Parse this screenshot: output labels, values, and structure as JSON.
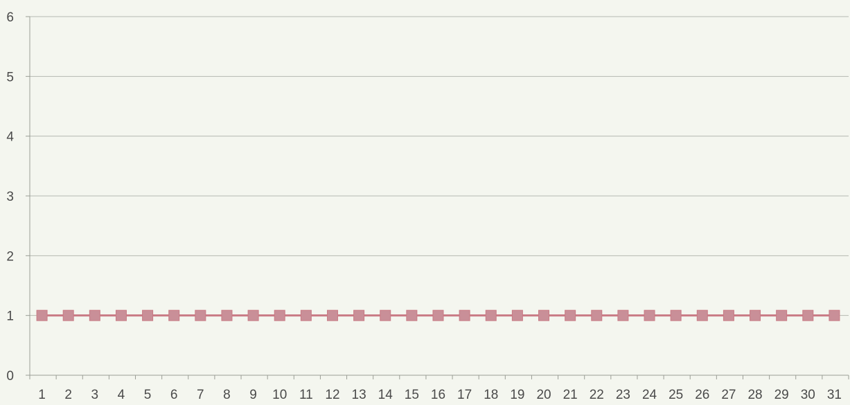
{
  "chart_data": {
    "type": "line",
    "title": "",
    "xlabel": "",
    "ylabel": "",
    "x": [
      1,
      2,
      3,
      4,
      5,
      6,
      7,
      8,
      9,
      10,
      11,
      12,
      13,
      14,
      15,
      16,
      17,
      18,
      19,
      20,
      21,
      22,
      23,
      24,
      25,
      26,
      27,
      28,
      29,
      30,
      31
    ],
    "x_tick_labels": [
      "1",
      "2",
      "3",
      "4",
      "5",
      "6",
      "7",
      "8",
      "9",
      "10",
      "11",
      "12",
      "13",
      "14",
      "15",
      "16",
      "17",
      "18",
      "19",
      "20",
      "21",
      "22",
      "23",
      "24",
      "25",
      "26",
      "27",
      "28",
      "29",
      "30",
      "31"
    ],
    "ylim": [
      0,
      6
    ],
    "y_ticks": [
      0,
      1,
      2,
      3,
      4,
      5,
      6
    ],
    "y_tick_labels": [
      "0",
      "1",
      "2",
      "3",
      "4",
      "5",
      "6"
    ],
    "grid": true,
    "legend": "none",
    "series": [
      {
        "marker": "square",
        "color": "#c97b85",
        "marker_color": "#c98f98",
        "values": [
          1,
          1,
          1,
          1,
          1,
          1,
          1,
          1,
          1,
          1,
          1,
          1,
          1,
          1,
          1,
          1,
          1,
          1,
          1,
          1,
          1,
          1,
          1,
          1,
          1,
          1,
          1,
          1,
          1,
          1,
          1
        ]
      }
    ],
    "colors": {
      "background": "#f4f6ef",
      "gridline": "#b5b8b0",
      "axis": "#9a9d95"
    }
  }
}
